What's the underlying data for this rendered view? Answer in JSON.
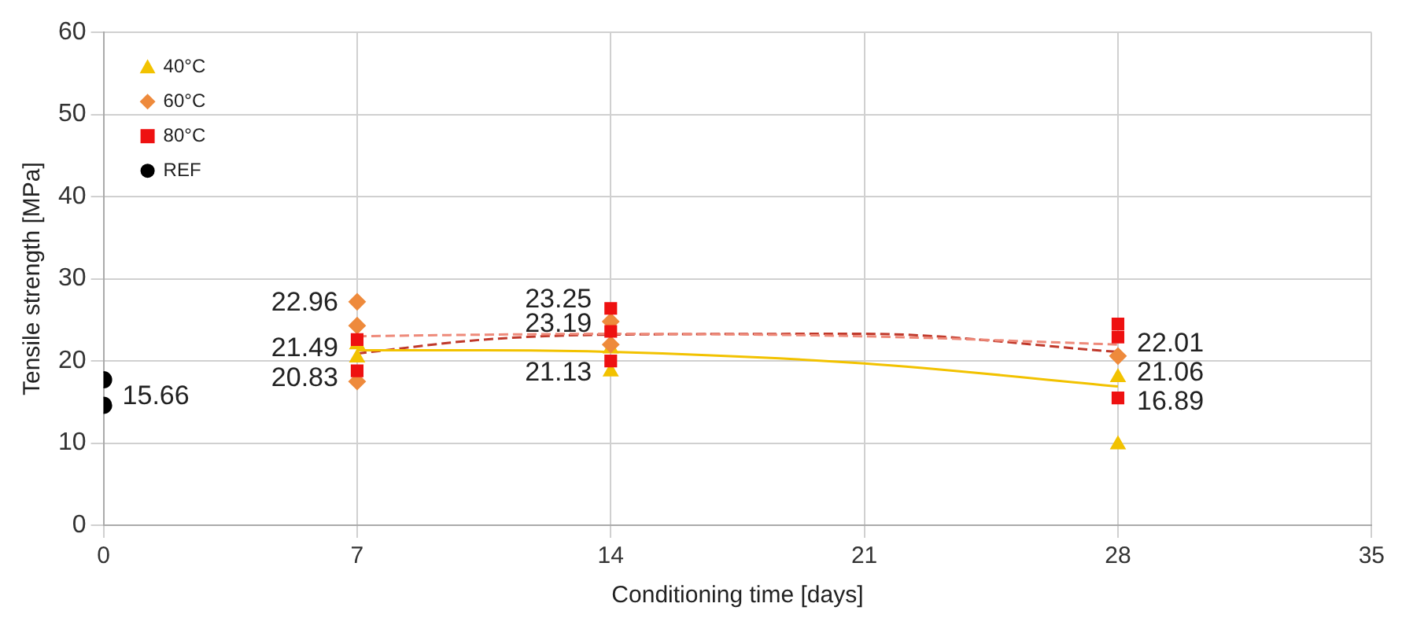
{
  "chart_data": {
    "type": "scatter",
    "xlabel": "Conditioning time [days]",
    "ylabel": "Tensile strength [MPa]",
    "xlim": [
      0,
      35
    ],
    "xticks": [
      0,
      7,
      14,
      21,
      28,
      35
    ],
    "ylim": [
      0,
      60
    ],
    "yticks": [
      0,
      10,
      20,
      30,
      40,
      50,
      60
    ],
    "grid": true,
    "legend": "top left",
    "series": [
      {
        "name": "40°C",
        "color": "#f2c200",
        "marker": "triangle",
        "x": [
          7,
          7,
          14,
          14,
          28,
          28
        ],
        "values": [
          20.4,
          22.0,
          21.5,
          18.7,
          18.0,
          9.8
        ]
      },
      {
        "name": "60°C",
        "color": "#ee8a3c",
        "marker": "diamond",
        "x": [
          7,
          7,
          7,
          14,
          14,
          28
        ],
        "values": [
          27.2,
          24.3,
          17.5,
          24.8,
          22.0,
          20.6
        ]
      },
      {
        "name": "80°C",
        "color": "#ee1111",
        "marker": "square",
        "x": [
          7,
          7,
          14,
          14,
          14,
          28,
          28,
          28
        ],
        "values": [
          22.6,
          18.8,
          26.4,
          23.6,
          20.0,
          24.5,
          22.9,
          15.5
        ]
      },
      {
        "name": "REF",
        "color": "#000000",
        "marker": "circle",
        "x": [
          0,
          0
        ],
        "values": [
          17.7,
          14.6
        ]
      },
      {
        "type": "line",
        "color": "#f2c200",
        "marker": "none",
        "line_style": "solid",
        "x": [
          7,
          10.5,
          14,
          21,
          28
        ],
        "values": [
          21.3,
          21.3,
          21.1,
          19.7,
          16.9
        ]
      },
      {
        "type": "line",
        "color": "#ee8a7a",
        "marker": "none",
        "line_style": "dashed",
        "x": [
          7,
          10.5,
          14,
          21,
          28
        ],
        "values": [
          23.0,
          23.2,
          23.3,
          23.0,
          22.0
        ]
      },
      {
        "type": "line",
        "color": "#c0392b",
        "marker": "none",
        "line_style": "dashed",
        "x": [
          7,
          10.5,
          14,
          21,
          28
        ],
        "values": [
          20.9,
          22.6,
          23.2,
          23.3,
          21.1
        ]
      }
    ],
    "annotations": [
      {
        "text": "15.66",
        "x": 0,
        "y": 15.66
      },
      {
        "text": "22.96",
        "x": 7,
        "y": 27.0
      },
      {
        "text": "21.49",
        "x": 7,
        "y": 21.49
      },
      {
        "text": "20.83",
        "x": 7,
        "y": 17.8
      },
      {
        "text": "23.25",
        "x": 14,
        "y": 27.4
      },
      {
        "text": "23.19",
        "x": 14,
        "y": 24.4
      },
      {
        "text": "21.13",
        "x": 14,
        "y": 18.5
      },
      {
        "text": "22.01",
        "x": 28,
        "y": 22.01
      },
      {
        "text": "21.06",
        "x": 28,
        "y": 18.5
      },
      {
        "text": "16.89",
        "x": 28,
        "y": 15.0
      }
    ]
  }
}
